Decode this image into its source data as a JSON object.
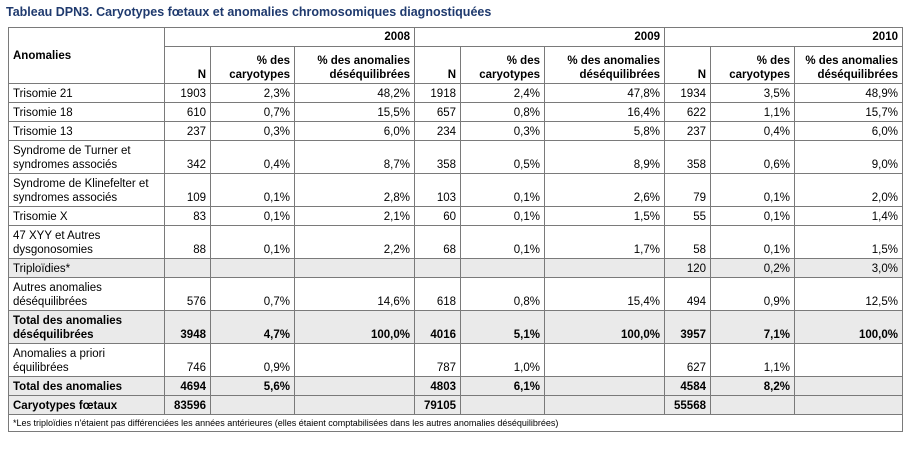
{
  "title": "Tableau DPN3. Caryotypes fœtaux et anomalies chromosomiques diagnostiquées",
  "header": {
    "anomalies": "Anomalies",
    "years": [
      "2008",
      "2009",
      "2010"
    ],
    "cols": {
      "n": "N",
      "pct_car": "% des caryotypes",
      "pct_anom": "% des anomalies déséquilibrées"
    }
  },
  "rows": [
    {
      "label": "Trisomie 21",
      "cells": [
        "1903",
        "2,3%",
        "48,2%",
        "1918",
        "2,4%",
        "47,8%",
        "1934",
        "3,5%",
        "48,9%"
      ]
    },
    {
      "label": "Trisomie 18",
      "cells": [
        "610",
        "0,7%",
        "15,5%",
        "657",
        "0,8%",
        "16,4%",
        "622",
        "1,1%",
        "15,7%"
      ]
    },
    {
      "label": "Trisomie 13",
      "cells": [
        "237",
        "0,3%",
        "6,0%",
        "234",
        "0,3%",
        "5,8%",
        "237",
        "0,4%",
        "6,0%"
      ]
    },
    {
      "label": "Syndrome de Turner et syndromes associés",
      "cells": [
        "342",
        "0,4%",
        "8,7%",
        "358",
        "0,5%",
        "8,9%",
        "358",
        "0,6%",
        "9,0%"
      ]
    },
    {
      "label": "Syndrome de Klinefelter et syndromes associés",
      "cells": [
        "109",
        "0,1%",
        "2,8%",
        "103",
        "0,1%",
        "2,6%",
        "79",
        "0,1%",
        "2,0%"
      ]
    },
    {
      "label": "Trisomie X",
      "cells": [
        "83",
        "0,1%",
        "2,1%",
        "60",
        "0,1%",
        "1,5%",
        "55",
        "0,1%",
        "1,4%"
      ]
    },
    {
      "label": "47 XYY et Autres dysgonosomies",
      "cells": [
        "88",
        "0,1%",
        "2,2%",
        "68",
        "0,1%",
        "1,7%",
        "58",
        "0,1%",
        "1,5%"
      ]
    },
    {
      "label": "Triploïdies*",
      "cells": [
        "",
        "",
        "",
        "",
        "",
        "",
        "120",
        "0,2%",
        "3,0%"
      ]
    },
    {
      "label": "Autres anomalies déséquilibrées",
      "cells": [
        "576",
        "0,7%",
        "14,6%",
        "618",
        "0,8%",
        "15,4%",
        "494",
        "0,9%",
        "12,5%"
      ]
    },
    {
      "label": "Total des anomalies déséquilibrées",
      "cells": [
        "3948",
        "4,7%",
        "100,0%",
        "4016",
        "5,1%",
        "100,0%",
        "3957",
        "7,1%",
        "100,0%"
      ]
    },
    {
      "label": "Anomalies a priori équilibrées",
      "cells": [
        "746",
        "0,9%",
        "",
        "787",
        "1,0%",
        "",
        "627",
        "1,1%",
        ""
      ]
    },
    {
      "label": "Total des anomalies",
      "cells": [
        "4694",
        "5,6%",
        "",
        "4803",
        "6,1%",
        "",
        "4584",
        "8,2%",
        ""
      ]
    },
    {
      "label": "Caryotypes fœtaux",
      "cells": [
        "83596",
        "",
        "",
        "79105",
        "",
        "",
        "55568",
        "",
        ""
      ]
    }
  ],
  "footnote": "*Les triploïdies n'étaient pas différenciées les années antérieures (elles étaient comptabilisées dans les autres anomalies déséquilibrées)"
}
